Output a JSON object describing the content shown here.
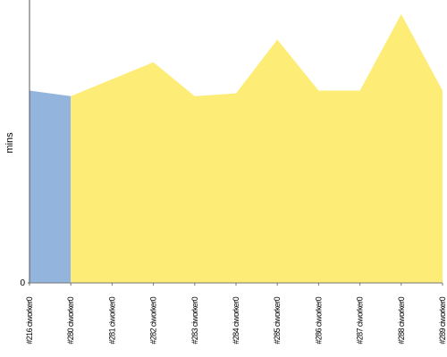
{
  "chart_data": {
    "type": "area",
    "y_label": "mins",
    "categories": [
      "#216 ciworker0",
      "#280 ciworker0",
      "#281 ciworker0",
      "#282 ciworker0",
      "#283 ciworker0",
      "#284 ciworker0",
      "#285 ciworker0",
      "#286 ciworker0",
      "#287 ciworker0",
      "#288 ciworker0",
      "#289 ciworker0"
    ],
    "series": [
      {
        "color": "#92b4dd",
        "values": [
          6.8,
          6.6,
          null,
          null,
          null,
          null,
          null,
          null,
          null,
          null,
          null
        ]
      },
      {
        "color": "#fdec76",
        "values": [
          null,
          6.6,
          7.2,
          7.8,
          6.6,
          6.7,
          8.6,
          6.8,
          6.8,
          9.5,
          6.8
        ]
      }
    ],
    "ylim": [
      0,
      10
    ],
    "yticks": [
      0
    ]
  }
}
